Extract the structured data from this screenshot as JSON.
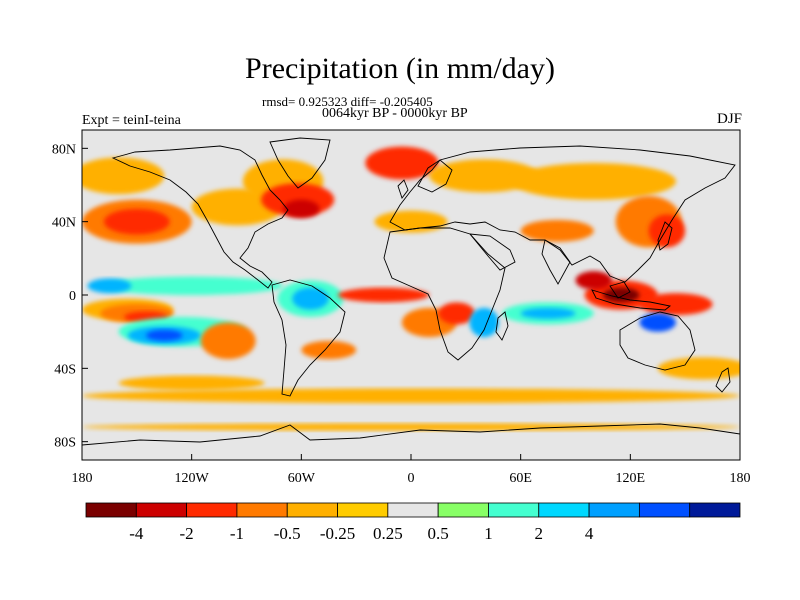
{
  "title": "Precipitation (in mm/day)",
  "stats_line": "rmsd= 0.925323 diff= -0.205405",
  "period_line": "0064kyr BP - 0000kyr BP",
  "experiment_label": "Expt = teinI-teina",
  "season_label": "DJF",
  "map": {
    "projection": "cylindrical-equidistant",
    "lon_range": [
      -180,
      180
    ],
    "lat_range": [
      -90,
      90
    ],
    "background_color": "#e6e6e6",
    "lon_ticks": [
      {
        "value": -180,
        "label": "180"
      },
      {
        "value": -120,
        "label": "120W"
      },
      {
        "value": -60,
        "label": "60W"
      },
      {
        "value": 0,
        "label": "0"
      },
      {
        "value": 60,
        "label": "60E"
      },
      {
        "value": 120,
        "label": "120E"
      },
      {
        "value": 180,
        "label": "180"
      }
    ],
    "lat_ticks": [
      {
        "value": 80,
        "label": "80N"
      },
      {
        "value": 40,
        "label": "40N"
      },
      {
        "value": 0,
        "label": "0"
      },
      {
        "value": -40,
        "label": "40S"
      },
      {
        "value": -80,
        "label": "80S"
      }
    ],
    "anomaly_regions": [
      {
        "lon": -160,
        "lat": 65,
        "rx": 25,
        "ry": 10,
        "color": "#ffb000"
      },
      {
        "lon": -150,
        "lat": 40,
        "rx": 30,
        "ry": 12,
        "color": "#ff7a00"
      },
      {
        "lon": -150,
        "lat": 40,
        "rx": 18,
        "ry": 7,
        "color": "#ff2a00"
      },
      {
        "lon": -95,
        "lat": 48,
        "rx": 25,
        "ry": 10,
        "color": "#ffb000"
      },
      {
        "lon": -70,
        "lat": 62,
        "rx": 22,
        "ry": 12,
        "color": "#ffb000"
      },
      {
        "lon": -62,
        "lat": 52,
        "rx": 20,
        "ry": 9,
        "color": "#ff2a00"
      },
      {
        "lon": -60,
        "lat": 47,
        "rx": 10,
        "ry": 5,
        "color": "#cc0000"
      },
      {
        "lon": -5,
        "lat": 72,
        "rx": 20,
        "ry": 9,
        "color": "#ff2a00"
      },
      {
        "lon": 40,
        "lat": 65,
        "rx": 30,
        "ry": 9,
        "color": "#ffb000"
      },
      {
        "lon": 100,
        "lat": 62,
        "rx": 45,
        "ry": 10,
        "color": "#ffb000"
      },
      {
        "lon": 130,
        "lat": 40,
        "rx": 18,
        "ry": 14,
        "color": "#ff7a00"
      },
      {
        "lon": 140,
        "lat": 35,
        "rx": 10,
        "ry": 9,
        "color": "#ff2a00"
      },
      {
        "lon": 0,
        "lat": 40,
        "rx": 20,
        "ry": 6,
        "color": "#ffb000"
      },
      {
        "lon": 80,
        "lat": 35,
        "rx": 20,
        "ry": 6,
        "color": "#ff7a00"
      },
      {
        "lon": -120,
        "lat": 5,
        "rx": 50,
        "ry": 5,
        "color": "#44ffd0"
      },
      {
        "lon": -165,
        "lat": 5,
        "rx": 12,
        "ry": 4,
        "color": "#00b4ff"
      },
      {
        "lon": -155,
        "lat": -8,
        "rx": 25,
        "ry": 6,
        "color": "#ffb000"
      },
      {
        "lon": -150,
        "lat": -10,
        "rx": 20,
        "ry": 5,
        "color": "#ff7a00"
      },
      {
        "lon": -145,
        "lat": -12,
        "rx": 12,
        "ry": 3,
        "color": "#ff2a00"
      },
      {
        "lon": -125,
        "lat": -20,
        "rx": 35,
        "ry": 8,
        "color": "#44ffd0"
      },
      {
        "lon": -135,
        "lat": -22,
        "rx": 20,
        "ry": 5,
        "color": "#00b4ff"
      },
      {
        "lon": -135,
        "lat": -22,
        "rx": 10,
        "ry": 3,
        "color": "#0050ff"
      },
      {
        "lon": -100,
        "lat": -25,
        "rx": 15,
        "ry": 10,
        "color": "#ff7a00"
      },
      {
        "lon": -55,
        "lat": -2,
        "rx": 18,
        "ry": 10,
        "color": "#44ffd0"
      },
      {
        "lon": -55,
        "lat": -2,
        "rx": 10,
        "ry": 6,
        "color": "#00b4ff"
      },
      {
        "lon": -45,
        "lat": -30,
        "rx": 15,
        "ry": 5,
        "color": "#ff7a00"
      },
      {
        "lon": -15,
        "lat": 0,
        "rx": 25,
        "ry": 4,
        "color": "#ff2a00"
      },
      {
        "lon": 10,
        "lat": -15,
        "rx": 15,
        "ry": 8,
        "color": "#ff7a00"
      },
      {
        "lon": 25,
        "lat": -10,
        "rx": 10,
        "ry": 6,
        "color": "#ff2a00"
      },
      {
        "lon": 40,
        "lat": -15,
        "rx": 8,
        "ry": 8,
        "color": "#00b4ff"
      },
      {
        "lon": 75,
        "lat": -10,
        "rx": 25,
        "ry": 6,
        "color": "#44ffd0"
      },
      {
        "lon": 75,
        "lat": -10,
        "rx": 15,
        "ry": 3,
        "color": "#00b4ff"
      },
      {
        "lon": 115,
        "lat": 0,
        "rx": 20,
        "ry": 8,
        "color": "#ff2a00"
      },
      {
        "lon": 115,
        "lat": 0,
        "rx": 10,
        "ry": 4,
        "color": "#7a0000"
      },
      {
        "lon": 145,
        "lat": -5,
        "rx": 20,
        "ry": 6,
        "color": "#ff2a00"
      },
      {
        "lon": 135,
        "lat": -15,
        "rx": 10,
        "ry": 5,
        "color": "#0050ff"
      },
      {
        "lon": 100,
        "lat": 8,
        "rx": 10,
        "ry": 5,
        "color": "#cc0000"
      },
      {
        "lon": 160,
        "lat": -40,
        "rx": 25,
        "ry": 6,
        "color": "#ffb000"
      },
      {
        "lon": 0,
        "lat": -55,
        "rx": 180,
        "ry": 4,
        "color": "#ffb000"
      },
      {
        "lon": -120,
        "lat": -48,
        "rx": 40,
        "ry": 4,
        "color": "#ffb000"
      },
      {
        "lon": 0,
        "lat": -72,
        "rx": 180,
        "ry": 2,
        "color": "#ffb000"
      }
    ]
  },
  "colorbar": {
    "colors": [
      "#7a0000",
      "#cc0000",
      "#ff2a00",
      "#ff7a00",
      "#ffb000",
      "#ffcc00",
      "#e6e6e6",
      "#88ff66",
      "#44ffd0",
      "#00d8ff",
      "#00a0ff",
      "#0050ff",
      "#001a99"
    ],
    "labels": [
      {
        "after_box": 1,
        "label": "-4"
      },
      {
        "after_box": 2,
        "label": "-2"
      },
      {
        "after_box": 3,
        "label": "-1"
      },
      {
        "after_box": 4,
        "label": "-0.5"
      },
      {
        "after_box": 5,
        "label": "-0.25"
      },
      {
        "after_box": 6,
        "label": "0.25"
      },
      {
        "after_box": 7,
        "label": "0.5"
      },
      {
        "after_box": 8,
        "label": "1"
      },
      {
        "after_box": 9,
        "label": "2"
      },
      {
        "after_box": 10,
        "label": "4"
      }
    ]
  }
}
